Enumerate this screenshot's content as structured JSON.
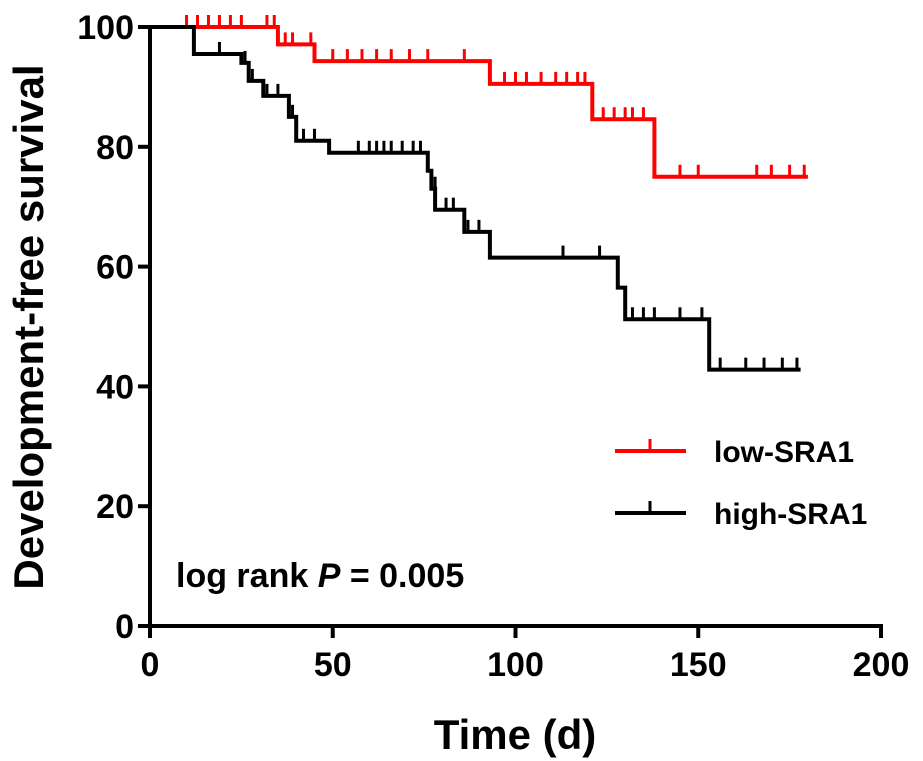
{
  "chart_data": {
    "type": "line",
    "subtype": "kaplan-meier",
    "xlabel": "Time (d)",
    "ylabel": "Development-free survival",
    "xlim": [
      0,
      200
    ],
    "ylim": [
      0,
      100
    ],
    "xticks": [
      0,
      50,
      100,
      150,
      200
    ],
    "yticks": [
      0,
      20,
      40,
      60,
      80,
      100
    ],
    "legend_position": "right",
    "annotation": {
      "prefix": "log rank ",
      "italic": "P",
      "suffix": " = 0.005"
    },
    "series": [
      {
        "name": "low-SRA1",
        "color": "#ff0000",
        "steps": [
          [
            0,
            100
          ],
          [
            35,
            100
          ],
          [
            35,
            97.1
          ],
          [
            45,
            97.1
          ],
          [
            45,
            94.3
          ],
          [
            93,
            94.3
          ],
          [
            93,
            90.5
          ],
          [
            121,
            90.5
          ],
          [
            121,
            84.6
          ],
          [
            138,
            84.6
          ],
          [
            138,
            75
          ],
          [
            180,
            75
          ]
        ],
        "censors": [
          [
            10,
            100
          ],
          [
            13,
            100
          ],
          [
            16,
            100
          ],
          [
            19,
            100
          ],
          [
            22,
            100
          ],
          [
            25,
            100
          ],
          [
            32,
            100
          ],
          [
            34,
            100
          ],
          [
            37,
            97.1
          ],
          [
            39,
            97.1
          ],
          [
            44,
            97.1
          ],
          [
            50,
            94.3
          ],
          [
            54,
            94.3
          ],
          [
            58,
            94.3
          ],
          [
            62,
            94.3
          ],
          [
            66,
            94.3
          ],
          [
            71,
            94.3
          ],
          [
            76,
            94.3
          ],
          [
            86,
            94.3
          ],
          [
            97,
            90.5
          ],
          [
            100,
            90.5
          ],
          [
            103,
            90.5
          ],
          [
            107,
            90.5
          ],
          [
            111,
            90.5
          ],
          [
            114,
            90.5
          ],
          [
            117,
            90.5
          ],
          [
            119,
            90.5
          ],
          [
            124,
            84.6
          ],
          [
            127,
            84.6
          ],
          [
            130,
            84.6
          ],
          [
            132,
            84.6
          ],
          [
            135,
            84.6
          ],
          [
            145,
            75
          ],
          [
            150,
            75
          ],
          [
            166,
            75
          ],
          [
            170,
            75
          ],
          [
            175,
            75
          ],
          [
            179,
            75
          ]
        ]
      },
      {
        "name": "high-SRA1",
        "color": "#000000",
        "steps": [
          [
            0,
            100
          ],
          [
            12,
            100
          ],
          [
            12,
            95.5
          ],
          [
            25,
            95.5
          ],
          [
            25,
            94
          ],
          [
            27,
            94
          ],
          [
            27,
            91
          ],
          [
            31,
            91
          ],
          [
            31,
            88.5
          ],
          [
            38,
            88.5
          ],
          [
            38,
            85
          ],
          [
            40,
            85
          ],
          [
            40,
            81
          ],
          [
            49,
            81
          ],
          [
            49,
            79
          ],
          [
            76,
            79
          ],
          [
            76,
            76
          ],
          [
            77,
            76
          ],
          [
            77,
            73
          ],
          [
            78,
            73
          ],
          [
            78,
            69.5
          ],
          [
            86,
            69.5
          ],
          [
            86,
            65.8
          ],
          [
            93,
            65.8
          ],
          [
            93,
            61.5
          ],
          [
            128,
            61.5
          ],
          [
            128,
            56.5
          ],
          [
            130,
            56.5
          ],
          [
            130,
            51.2
          ],
          [
            153,
            51.2
          ],
          [
            153,
            42.8
          ],
          [
            178,
            42.8
          ]
        ],
        "censors": [
          [
            19,
            95.5
          ],
          [
            26,
            94
          ],
          [
            28,
            91
          ],
          [
            32,
            88.5
          ],
          [
            35,
            88.5
          ],
          [
            39,
            85
          ],
          [
            42,
            81
          ],
          [
            45,
            81
          ],
          [
            57,
            79
          ],
          [
            60,
            79
          ],
          [
            62,
            79
          ],
          [
            64,
            79
          ],
          [
            66,
            79
          ],
          [
            69,
            79
          ],
          [
            72,
            79
          ],
          [
            74,
            79
          ],
          [
            76,
            76
          ],
          [
            78,
            73
          ],
          [
            81,
            69.5
          ],
          [
            83,
            69.5
          ],
          [
            87,
            65.8
          ],
          [
            90,
            65.8
          ],
          [
            113,
            61.5
          ],
          [
            123,
            61.5
          ],
          [
            132,
            51.2
          ],
          [
            135,
            51.2
          ],
          [
            138,
            51.2
          ],
          [
            145,
            51.2
          ],
          [
            151,
            51.2
          ],
          [
            156,
            42.8
          ],
          [
            163,
            42.8
          ],
          [
            168,
            42.8
          ],
          [
            173,
            42.8
          ],
          [
            177,
            42.8
          ]
        ]
      }
    ]
  }
}
